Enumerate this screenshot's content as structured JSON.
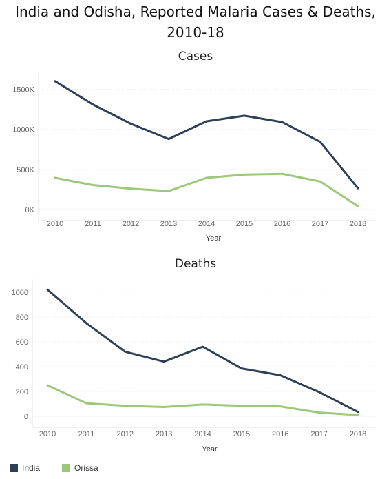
{
  "title": "India and Odisha, Reported Malaria Cases & Deaths, 2010-18",
  "chart_data": [
    {
      "type": "line",
      "title": "Cases",
      "xlabel": "Year",
      "ylabel": "",
      "x": [
        "2010",
        "2011",
        "2012",
        "2013",
        "2014",
        "2015",
        "2016",
        "2017",
        "2018"
      ],
      "yticks": [
        0,
        500,
        1000,
        1500
      ],
      "yticklabels": [
        "0K",
        "500K",
        "1000K",
        "1500K"
      ],
      "ylim": [
        0,
        1650
      ],
      "series": [
        {
          "name": "India",
          "color": "#2e4057",
          "values": [
            1600,
            1310,
            1070,
            880,
            1100,
            1170,
            1090,
            845,
            265
          ]
        },
        {
          "name": "Orissa",
          "color": "#9bc87a",
          "values": [
            395,
            305,
            260,
            230,
            395,
            435,
            445,
            350,
            40
          ]
        }
      ]
    },
    {
      "type": "line",
      "title": "Deaths",
      "xlabel": "Year",
      "ylabel": "",
      "x": [
        "2010",
        "2011",
        "2012",
        "2013",
        "2014",
        "2015",
        "2016",
        "2017",
        "2018"
      ],
      "yticks": [
        0,
        200,
        400,
        600,
        800,
        1000
      ],
      "yticklabels": [
        "0",
        "200",
        "400",
        "600",
        "800",
        "1000"
      ],
      "ylim": [
        0,
        1060
      ],
      "series": [
        {
          "name": "India",
          "color": "#2e4057",
          "values": [
            1020,
            750,
            520,
            440,
            560,
            385,
            330,
            195,
            35
          ]
        },
        {
          "name": "Orissa",
          "color": "#9bc87a",
          "values": [
            250,
            105,
            85,
            75,
            95,
            85,
            80,
            30,
            10
          ]
        }
      ]
    }
  ],
  "legend": [
    {
      "name": "India",
      "color": "#2e4057"
    },
    {
      "name": "Orissa",
      "color": "#9bc87a"
    }
  ]
}
